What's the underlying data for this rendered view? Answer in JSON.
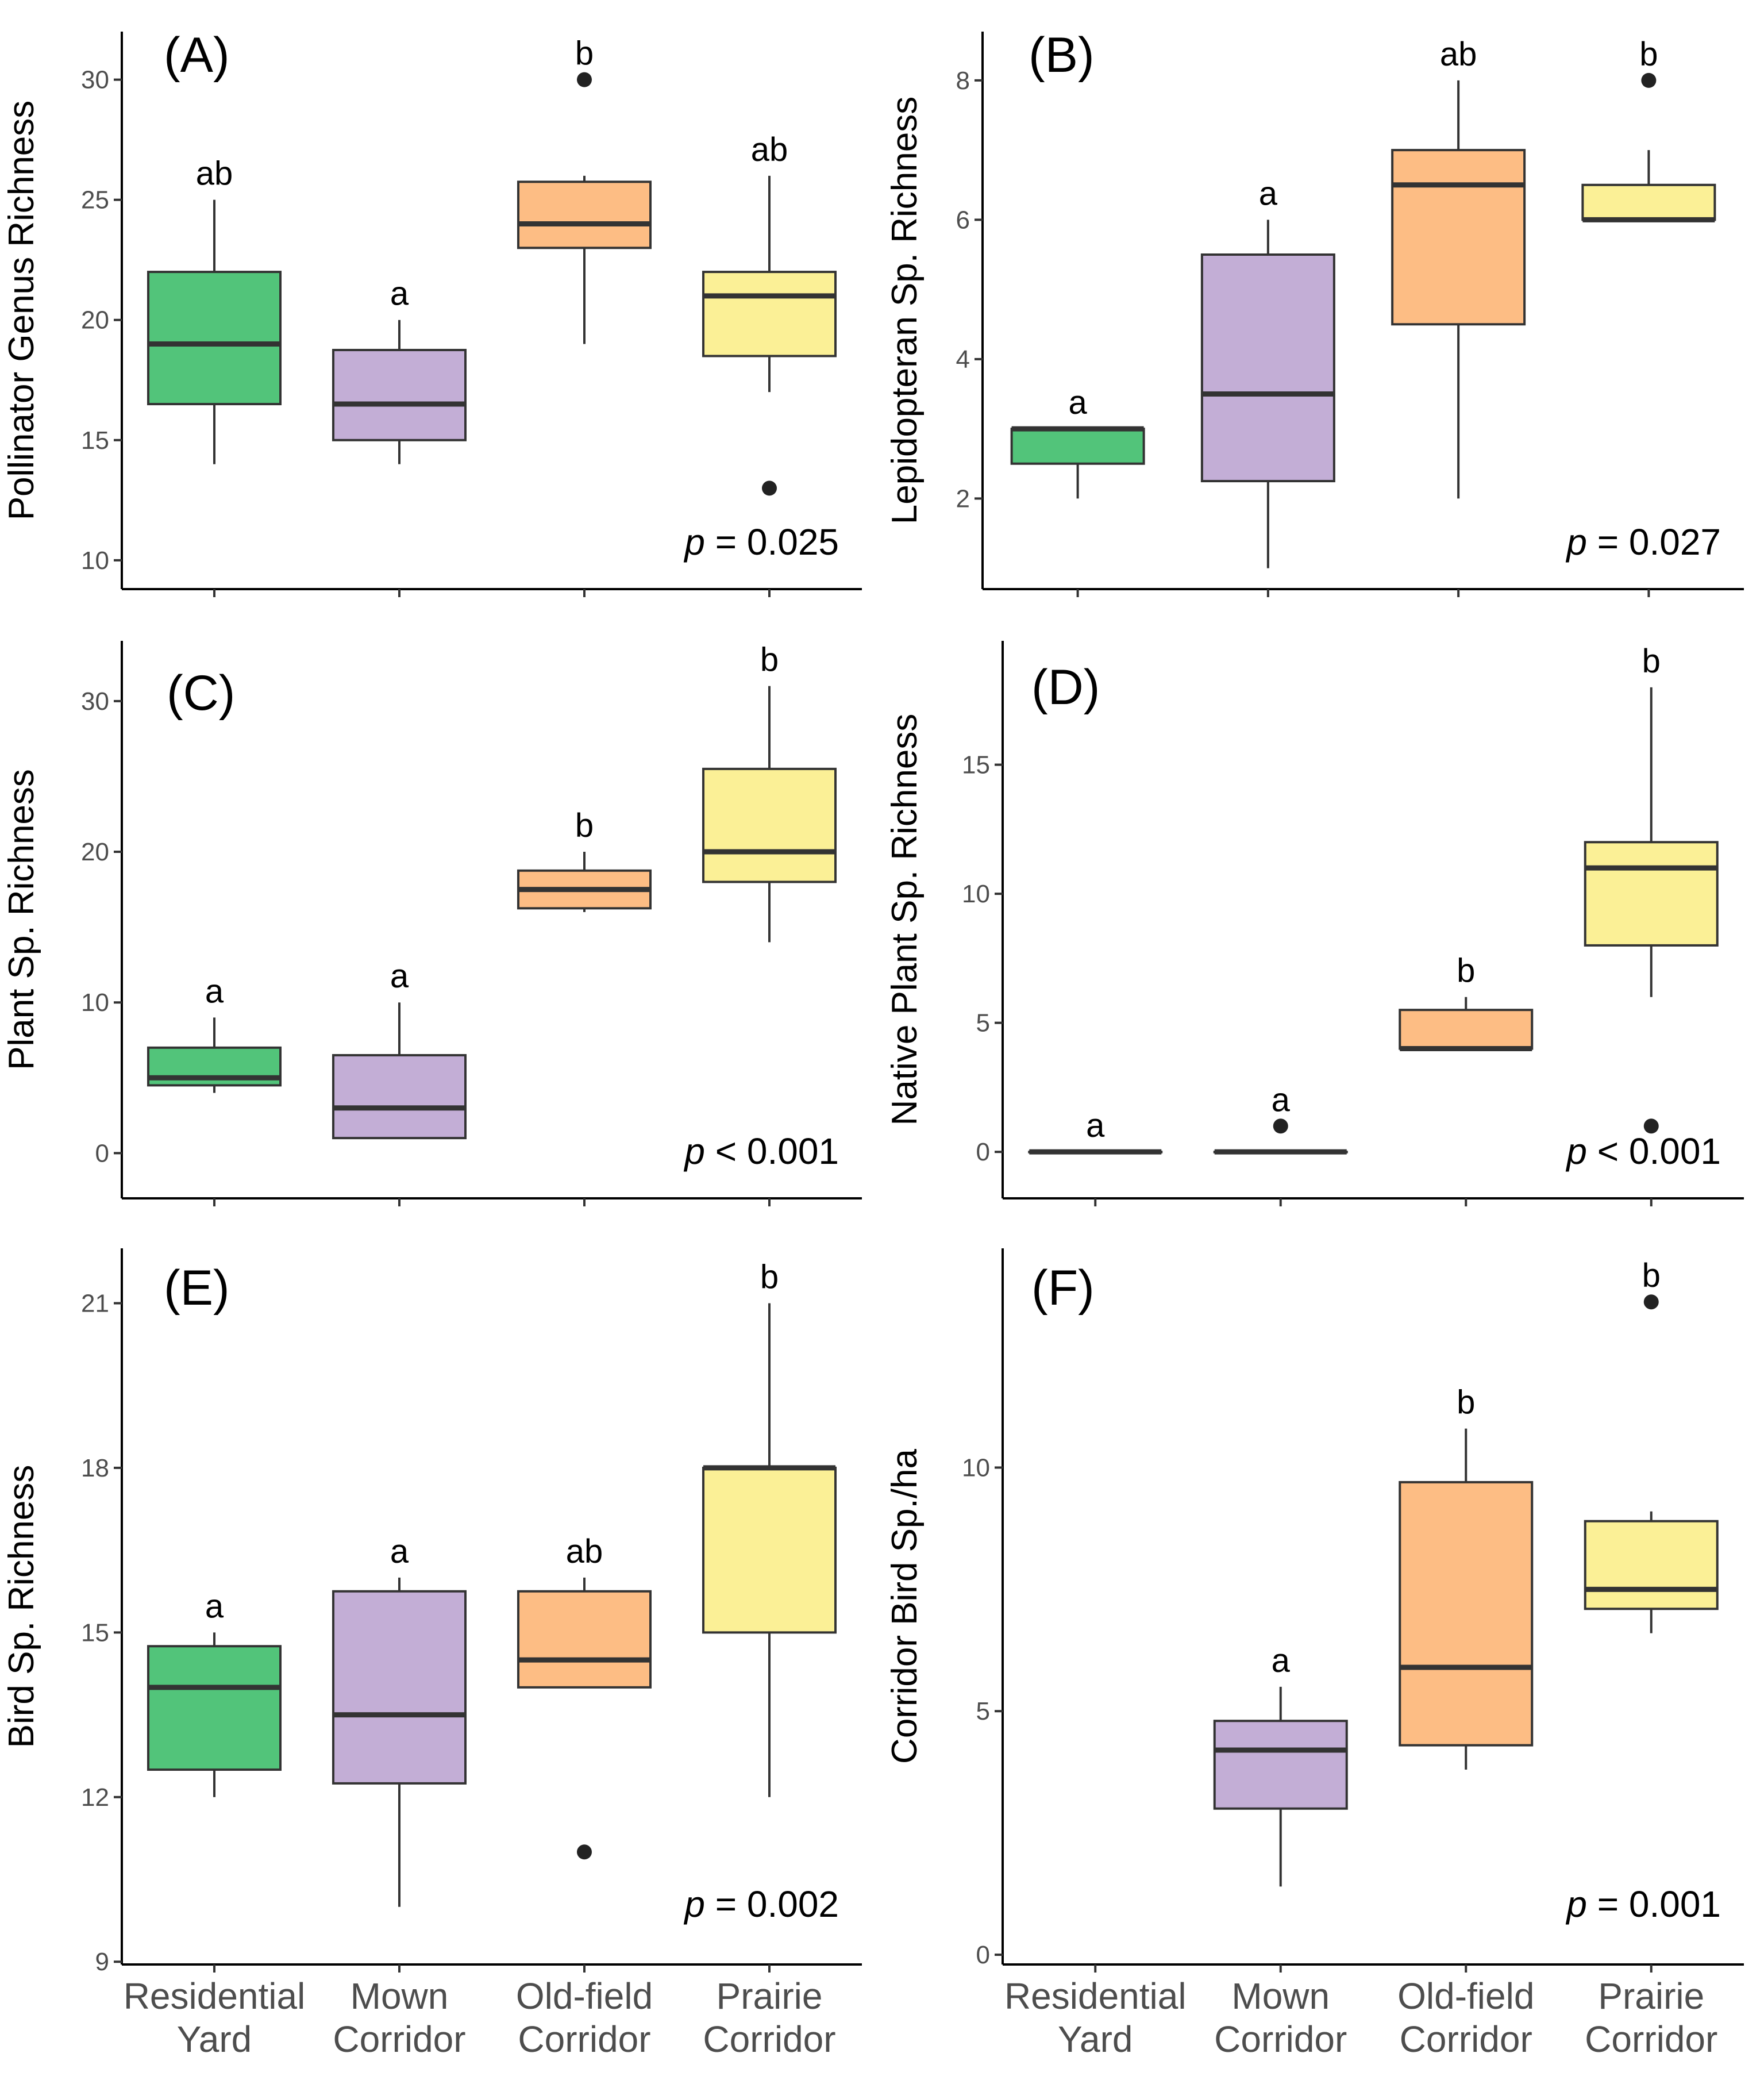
{
  "categories": [
    {
      "line1": "Residential",
      "line2": "Yard"
    },
    {
      "line1": "Mown",
      "line2": "Corridor"
    },
    {
      "line1": "Old-field",
      "line2": "Corridor"
    },
    {
      "line1": "Prairie",
      "line2": "Corridor"
    }
  ],
  "colors": {
    "Residential Yard": "#52c47a",
    "Mown Corridor": "#c3aed6",
    "Old-field Corridor": "#fdbd84",
    "Prairie Corridor": "#fbf096"
  },
  "chart_data": [
    {
      "type": "boxplot",
      "panel": "(A)",
      "ylabel": "Pollinator Genus Richness",
      "ylim": [
        8.8,
        32
      ],
      "yticks": [
        10,
        15,
        20,
        25,
        30
      ],
      "p_value": {
        "symbol": "p",
        "rest": " = 0.025"
      },
      "boxes": [
        {
          "category": "Residential Yard",
          "min": 14,
          "q1": 16.5,
          "median": 19,
          "q3": 22,
          "max": 25,
          "outliers": [],
          "letter": "ab"
        },
        {
          "category": "Mown Corridor",
          "min": 14,
          "q1": 15,
          "median": 16.5,
          "q3": 18.75,
          "max": 20,
          "outliers": [],
          "letter": "a"
        },
        {
          "category": "Old-field Corridor",
          "min": 19,
          "q1": 23,
          "median": 24,
          "q3": 25.75,
          "max": 26,
          "outliers": [
            30
          ],
          "letter": "b"
        },
        {
          "category": "Prairie Corridor",
          "min": 17,
          "q1": 18.5,
          "median": 21,
          "q3": 22,
          "max": 26,
          "outliers": [
            13
          ],
          "letter": "ab"
        }
      ]
    },
    {
      "type": "boxplot",
      "panel": "(B)",
      "ylabel": "Lepidopteran Sp. Richness",
      "ylim": [
        0.7,
        8.7
      ],
      "yticks": [
        2,
        4,
        6,
        8
      ],
      "p_value": {
        "symbol": "p",
        "rest": " = 0.027"
      },
      "boxes": [
        {
          "category": "Residential Yard",
          "min": 2,
          "q1": 2.5,
          "median": 3,
          "q3": 3,
          "max": 3,
          "outliers": [],
          "letter": "a"
        },
        {
          "category": "Mown Corridor",
          "min": 1,
          "q1": 2.25,
          "median": 3.5,
          "q3": 5.5,
          "max": 6,
          "outliers": [],
          "letter": "a"
        },
        {
          "category": "Old-field Corridor",
          "min": 2,
          "q1": 4.5,
          "median": 6.5,
          "q3": 7,
          "max": 8,
          "outliers": [],
          "letter": "ab"
        },
        {
          "category": "Prairie Corridor",
          "min": 6,
          "q1": 6,
          "median": 6,
          "q3": 6.5,
          "max": 7,
          "outliers": [
            8
          ],
          "letter": "b"
        }
      ]
    },
    {
      "type": "boxplot",
      "panel": "(C)",
      "ylabel": "Plant Sp. Richness",
      "ylim": [
        -3,
        34
      ],
      "yticks": [
        0,
        10,
        20,
        30
      ],
      "p_value": {
        "symbol": "p",
        "rest": " < 0.001"
      },
      "boxes": [
        {
          "category": "Residential Yard",
          "min": 4,
          "q1": 4.5,
          "median": 5,
          "q3": 7,
          "max": 9,
          "outliers": [],
          "letter": "a"
        },
        {
          "category": "Mown Corridor",
          "min": 1,
          "q1": 1,
          "median": 3,
          "q3": 6.5,
          "max": 10,
          "outliers": [],
          "letter": "a"
        },
        {
          "category": "Old-field Corridor",
          "min": 16,
          "q1": 16.25,
          "median": 17.5,
          "q3": 18.75,
          "max": 20,
          "outliers": [],
          "letter": "b"
        },
        {
          "category": "Prairie Corridor",
          "min": 14,
          "q1": 18,
          "median": 20,
          "q3": 25.5,
          "max": 31,
          "outliers": [],
          "letter": "b"
        }
      ]
    },
    {
      "type": "boxplot",
      "panel": "(D)",
      "ylabel": "Native Plant Sp. Richness",
      "ylim": [
        -1.8,
        19.8
      ],
      "yticks": [
        0,
        5,
        10,
        15
      ],
      "p_value": {
        "symbol": "p",
        "rest": " < 0.001"
      },
      "boxes": [
        {
          "category": "Residential Yard",
          "min": 0,
          "q1": 0,
          "median": 0,
          "q3": 0,
          "max": 0,
          "outliers": [],
          "letter": "a"
        },
        {
          "category": "Mown Corridor",
          "min": 0,
          "q1": 0,
          "median": 0,
          "q3": 0,
          "max": 0,
          "outliers": [
            1
          ],
          "letter": "a"
        },
        {
          "category": "Old-field Corridor",
          "min": 4,
          "q1": 4,
          "median": 4,
          "q3": 5.5,
          "max": 6,
          "outliers": [],
          "letter": "b"
        },
        {
          "category": "Prairie Corridor",
          "min": 6,
          "q1": 8,
          "median": 11,
          "q3": 12,
          "max": 18,
          "outliers": [
            1
          ],
          "letter": "b"
        }
      ]
    },
    {
      "type": "boxplot",
      "panel": "(E)",
      "ylabel": "Bird Sp. Richness",
      "ylim": [
        8.95,
        22
      ],
      "yticks": [
        9,
        12,
        15,
        18,
        21
      ],
      "p_value": {
        "symbol": "p",
        "rest": " = 0.002"
      },
      "boxes": [
        {
          "category": "Residential Yard",
          "min": 12,
          "q1": 12.5,
          "median": 14,
          "q3": 14.75,
          "max": 15,
          "outliers": [],
          "letter": "a"
        },
        {
          "category": "Mown Corridor",
          "min": 10,
          "q1": 12.25,
          "median": 13.5,
          "q3": 15.75,
          "max": 16,
          "outliers": [],
          "letter": "a"
        },
        {
          "category": "Old-field Corridor",
          "min": 14,
          "q1": 14,
          "median": 14.5,
          "q3": 15.75,
          "max": 16,
          "outliers": [
            11
          ],
          "letter": "ab"
        },
        {
          "category": "Prairie Corridor",
          "min": 12,
          "q1": 15,
          "median": 18,
          "q3": 18,
          "max": 21,
          "outliers": [],
          "letter": "b"
        }
      ]
    },
    {
      "type": "boxplot",
      "panel": "(F)",
      "ylabel": "Corridor Bird Sp./ha",
      "ylim": [
        -0.2,
        14.5
      ],
      "yticks": [
        0,
        5,
        10
      ],
      "p_value": {
        "symbol": "p",
        "rest": " = 0.001"
      },
      "boxes": [
        {
          "category": "Residential Yard",
          "min": null,
          "q1": null,
          "median": null,
          "q3": null,
          "max": null,
          "outliers": [],
          "letter": ""
        },
        {
          "category": "Mown Corridor",
          "min": 1.4,
          "q1": 3,
          "median": 4.2,
          "q3": 4.8,
          "max": 5.5,
          "outliers": [],
          "letter": "a"
        },
        {
          "category": "Old-field Corridor",
          "min": 3.8,
          "q1": 4.3,
          "median": 5.9,
          "q3": 9.7,
          "max": 10.8,
          "outliers": [],
          "letter": "b"
        },
        {
          "category": "Prairie Corridor",
          "min": 6.6,
          "q1": 7.1,
          "median": 7.5,
          "q3": 8.9,
          "max": 9.1,
          "outliers": [
            13.4
          ],
          "letter": "b"
        }
      ]
    }
  ]
}
